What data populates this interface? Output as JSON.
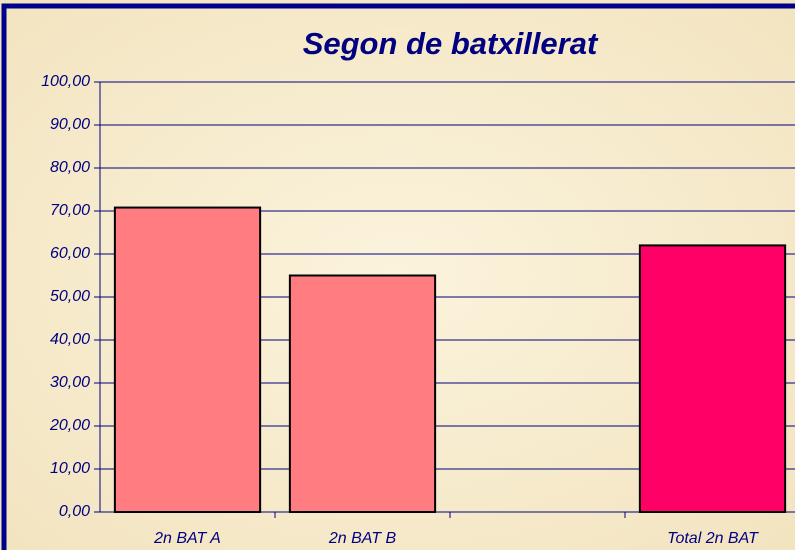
{
  "chart_data": {
    "type": "bar",
    "title": "Segon de batxillerat",
    "categories": [
      "2n BAT A",
      "2n BAT B",
      null,
      "Total 2n BAT"
    ],
    "values": [
      70.8,
      55,
      null,
      62
    ],
    "colors": [
      "#ff7c80",
      "#ff7c80",
      "#ff7c80",
      "#ff0066"
    ],
    "ylim": [
      0,
      100
    ],
    "yticks": [
      {
        "value": 0,
        "label": "0,00"
      },
      {
        "value": 10,
        "label": "10,00"
      },
      {
        "value": 20,
        "label": "20,00"
      },
      {
        "value": 30,
        "label": "30,00"
      },
      {
        "value": 40,
        "label": "40,00"
      },
      {
        "value": 50,
        "label": "50,00"
      },
      {
        "value": 60,
        "label": "60,00"
      },
      {
        "value": 70,
        "label": "70,00"
      },
      {
        "value": 80,
        "label": "80,00"
      },
      {
        "value": 90,
        "label": "90,00"
      },
      {
        "value": 100,
        "label": "100,00"
      }
    ],
    "grid": true
  }
}
